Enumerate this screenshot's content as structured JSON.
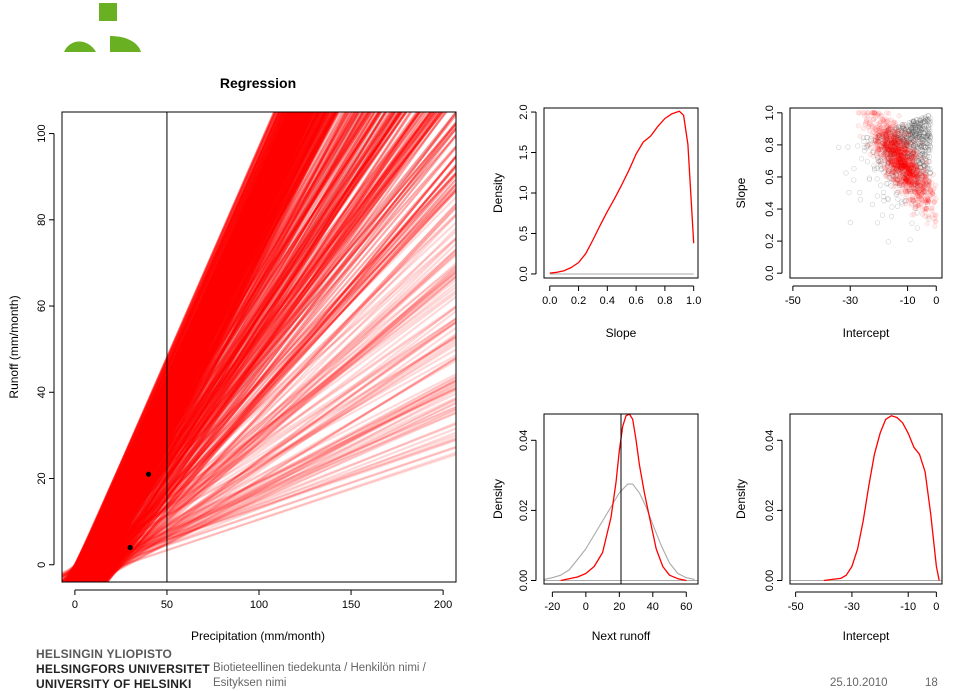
{
  "logo": {
    "name": "University of Helsinki logo",
    "color": "#6ab023"
  },
  "footer": {
    "university_fi": "HELSINGIN YLIOPISTO",
    "university_sv": "HELSINGFORS UNIVERSITET",
    "university_en": "UNIVERSITY OF HELSINKI",
    "faculty_line1": "Biotieteellinen tiedekunta / Henkilön nimi /",
    "faculty_line2": "Esityksen nimi",
    "date": "25.10.2010",
    "page": "18"
  },
  "colors": {
    "posterior": "#ff0000",
    "prior": "#aaaaaa"
  },
  "chart_data": [
    {
      "type": "line",
      "title": "Regression",
      "xlabel": "Precipitation (mm/month)",
      "ylabel": "Runoff (mm/month)",
      "xlim": [
        -7,
        207
      ],
      "ylim": [
        -4,
        105
      ],
      "xticks": [
        0,
        50,
        100,
        150,
        200
      ],
      "yticks": [
        0,
        20,
        40,
        60,
        80,
        100
      ],
      "vline_x": 50,
      "points": [
        {
          "x": 30,
          "y": 4
        },
        {
          "x": 40,
          "y": 21
        }
      ],
      "series": [
        {
          "color": "gray",
          "role": "prior regression lines",
          "x0": [
            10,
            17
          ],
          "slope": [
            0.45,
            1.05
          ]
        },
        {
          "color": "red",
          "role": "posterior regression lines",
          "x0": [
            0,
            32
          ],
          "slope": [
            0.12,
            0.98
          ]
        }
      ]
    },
    {
      "type": "line",
      "xlabel": "Slope",
      "ylabel": "Density",
      "xlim": [
        -0.04,
        1.03
      ],
      "ylim": [
        -0.05,
        2.05
      ],
      "xticks": [
        "0.0",
        "0.2",
        "0.4",
        "0.6",
        "0.8",
        "1.0"
      ],
      "yticks": [
        "0.0",
        "0.5",
        "1.0",
        "1.5",
        "2.0"
      ],
      "series": [
        {
          "color": "red",
          "x": [
            0.0,
            0.05,
            0.1,
            0.15,
            0.2,
            0.25,
            0.3,
            0.35,
            0.4,
            0.45,
            0.5,
            0.55,
            0.6,
            0.65,
            0.7,
            0.75,
            0.8,
            0.85,
            0.9,
            0.93,
            0.96,
            1.0
          ],
          "y": [
            0.01,
            0.02,
            0.04,
            0.08,
            0.14,
            0.25,
            0.42,
            0.6,
            0.77,
            0.93,
            1.1,
            1.28,
            1.48,
            1.63,
            1.7,
            1.82,
            1.92,
            1.98,
            2.01,
            1.96,
            1.6,
            0.38
          ]
        },
        {
          "color": "gray",
          "x": [
            0.0,
            1.0
          ],
          "y": [
            0.0,
            0.0
          ]
        }
      ]
    },
    {
      "type": "scatter",
      "xlabel": "Intercept",
      "ylabel": "Slope",
      "xlim": [
        -51,
        2
      ],
      "ylim": [
        -0.03,
        1.03
      ],
      "xticks": [
        "-50",
        "-30",
        "-10",
        "0"
      ],
      "yticks": [
        "0.0",
        "0.2",
        "0.4",
        "0.6",
        "0.8",
        "1.0"
      ],
      "series": [
        {
          "color": "gray",
          "role": "prior samples",
          "x_range": [
            -35,
            0
          ],
          "y_range": [
            0.15,
            1.0
          ]
        },
        {
          "color": "red",
          "role": "posterior samples",
          "x_range": [
            -28,
            0
          ],
          "y_range": [
            0.1,
            1.0
          ]
        }
      ]
    },
    {
      "type": "line",
      "xlabel": "Next runoff",
      "ylabel": "Density",
      "xlim": [
        -25,
        67
      ],
      "ylim": [
        -0.001,
        0.0475
      ],
      "xticks": [
        "-20",
        "0",
        "20",
        "40",
        "60"
      ],
      "yticks": [
        "0.00",
        "0.02",
        "0.04"
      ],
      "vline_x": 21,
      "series": [
        {
          "color": "red",
          "x": [
            -15,
            -10,
            -5,
            0,
            5,
            10,
            15,
            18,
            20,
            22,
            24,
            26,
            28,
            30,
            32,
            35,
            38,
            42,
            46,
            50,
            55,
            60
          ],
          "y": [
            0.0,
            0.0005,
            0.001,
            0.002,
            0.004,
            0.008,
            0.018,
            0.028,
            0.037,
            0.044,
            0.047,
            0.0475,
            0.046,
            0.04,
            0.033,
            0.025,
            0.018,
            0.009,
            0.004,
            0.0015,
            0.0005,
            0.0
          ]
        },
        {
          "color": "gray",
          "x": [
            -25,
            -20,
            -15,
            -10,
            -5,
            0,
            5,
            10,
            15,
            20,
            25,
            28,
            32,
            36,
            40,
            45,
            50,
            55,
            60,
            65
          ],
          "y": [
            0.0003,
            0.0008,
            0.0015,
            0.003,
            0.006,
            0.009,
            0.013,
            0.017,
            0.021,
            0.025,
            0.0275,
            0.0275,
            0.025,
            0.021,
            0.016,
            0.01,
            0.005,
            0.002,
            0.0008,
            0.0003
          ]
        },
        {
          "color": "gray",
          "x": [
            -25,
            67
          ],
          "y": [
            0.0,
            0.0
          ]
        }
      ]
    },
    {
      "type": "line",
      "xlabel": "Intercept",
      "ylabel": "Density",
      "xlim": [
        -52,
        2
      ],
      "ylim": [
        -0.001,
        0.0475
      ],
      "xticks": [
        "-50",
        "-30",
        "-10",
        "0"
      ],
      "yticks": [
        "0.00",
        "0.02",
        "0.04"
      ],
      "series": [
        {
          "color": "red",
          "x": [
            -40,
            -37,
            -34,
            -32,
            -30,
            -28,
            -26,
            -24,
            -22,
            -20,
            -18,
            -16,
            -14,
            -12,
            -10,
            -8,
            -6,
            -4,
            -2,
            0,
            1
          ],
          "y": [
            0.0,
            0.0003,
            0.0006,
            0.0015,
            0.004,
            0.009,
            0.017,
            0.027,
            0.036,
            0.042,
            0.046,
            0.047,
            0.0465,
            0.045,
            0.042,
            0.038,
            0.036,
            0.031,
            0.019,
            0.004,
            0.0
          ]
        },
        {
          "color": "gray",
          "x": [
            -52,
            2
          ],
          "y": [
            0.0,
            0.0
          ]
        }
      ]
    }
  ]
}
